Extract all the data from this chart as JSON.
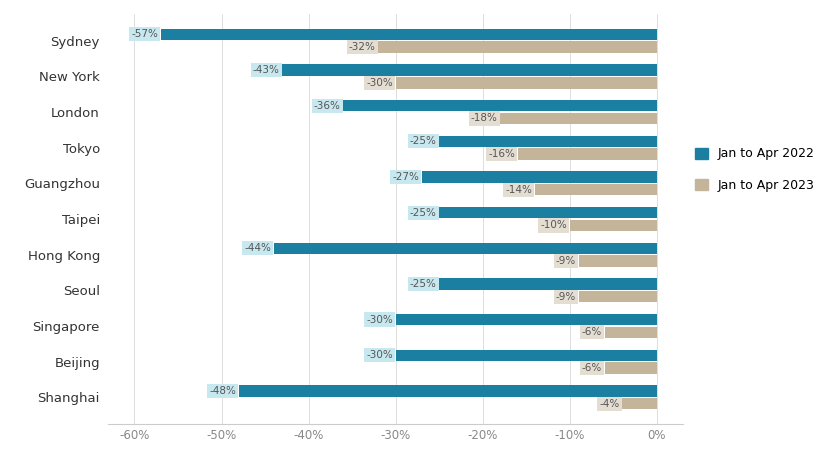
{
  "cities": [
    "Shanghai",
    "Beijing",
    "Singapore",
    "Seoul",
    "Hong Kong",
    "Taipei",
    "Guangzhou",
    "Tokyo",
    "London",
    "New York",
    "Sydney"
  ],
  "values_2022": [
    -48,
    -30,
    -30,
    -25,
    -44,
    -25,
    -27,
    -25,
    -36,
    -43,
    -57
  ],
  "values_2023": [
    -4,
    -6,
    -6,
    -9,
    -9,
    -10,
    -14,
    -16,
    -18,
    -30,
    -32
  ],
  "color_2022": "#1a7fa0",
  "color_2023": "#c4b49a",
  "label_bg_2022": "#c8e8f0",
  "label_bg_2023": "#e4ddd2",
  "label_text_color": "#555555",
  "legend_2022": "Jan to Apr 2022",
  "legend_2023": "Jan to Apr 2023",
  "xlim": [
    -63,
    3
  ],
  "xticks": [
    -60,
    -50,
    -40,
    -30,
    -20,
    -10,
    0
  ],
  "xticklabels": [
    "-60%",
    "-50%",
    "-40%",
    "-30%",
    "-20%",
    "-10%",
    "0%"
  ],
  "bar_height": 0.32,
  "bar_gap": 0.04,
  "figsize": [
    8.33,
    4.66
  ],
  "dpi": 100,
  "background_color": "#ffffff",
  "label_fontsize": 7.5,
  "axis_fontsize": 8.5,
  "city_fontsize": 9.5
}
